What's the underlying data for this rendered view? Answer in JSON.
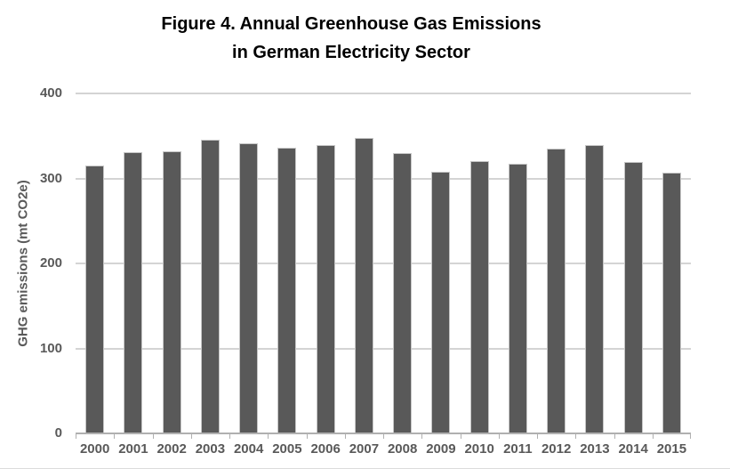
{
  "figure": {
    "title_line1": "Figure 4. Annual Greenhouse Gas Emissions",
    "title_line2": "in German Electricity Sector"
  },
  "chart_data": {
    "type": "bar",
    "title": "Figure 4. Annual Greenhouse Gas Emissions in German Electricity Sector",
    "categories": [
      "2000",
      "2001",
      "2002",
      "2003",
      "2004",
      "2005",
      "2006",
      "2007",
      "2008",
      "2009",
      "2010",
      "2011",
      "2012",
      "2013",
      "2014",
      "2015"
    ],
    "values": [
      315,
      331,
      332,
      346,
      341,
      336,
      339,
      348,
      330,
      308,
      320,
      317,
      335,
      339,
      319,
      307
    ],
    "xlabel": "",
    "ylabel": "GHG emissions (mt CO2e)",
    "ylim": [
      0,
      400
    ],
    "yticks": [
      0,
      100,
      200,
      300,
      400
    ],
    "grid": true,
    "legend_position": "none",
    "colors": {
      "bar_fill": "#595959",
      "bar_border": "#c6c6c6",
      "gridline": "#d4d4d4",
      "axis_line": "#b0b0b0",
      "tick_label": "#595959",
      "title_text": "#000000",
      "background": "#ffffff"
    }
  }
}
